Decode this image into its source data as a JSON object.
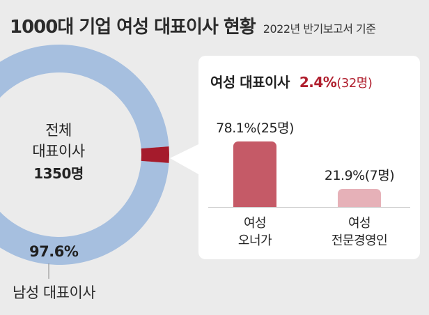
{
  "title": "1000대 기업 여성 대표이사 현황",
  "subtitle": "2022년 반기보고서 기준",
  "donut": {
    "center_line1": "전체",
    "center_line2": "대표이사",
    "center_line3": "1350명",
    "male_pct": "97.6%",
    "male_label": "남성 대표이사"
  },
  "panel": {
    "title": "여성 대표이사",
    "pct": "2.4%",
    "count": "(32명)"
  },
  "colors": {
    "male": "#a6bfdf",
    "female": "#a51b2c",
    "owner_bar": "#c55a67",
    "pro_bar": "#e6b1b8"
  },
  "chart_data": [
    {
      "type": "pie",
      "title": "",
      "total": 1350,
      "slices": [
        {
          "name": "남성 대표이사",
          "value": 97.6
        },
        {
          "name": "여성 대표이사",
          "value": 2.4
        }
      ]
    },
    {
      "type": "bar",
      "title": "여성 대표이사",
      "categories": [
        "여성\n오너가",
        "여성\n전문경영인"
      ],
      "values": [
        78.1,
        21.9
      ],
      "counts": [
        25,
        7
      ],
      "value_labels": [
        "78.1%(25명)",
        "21.9%(7명)"
      ]
    }
  ]
}
